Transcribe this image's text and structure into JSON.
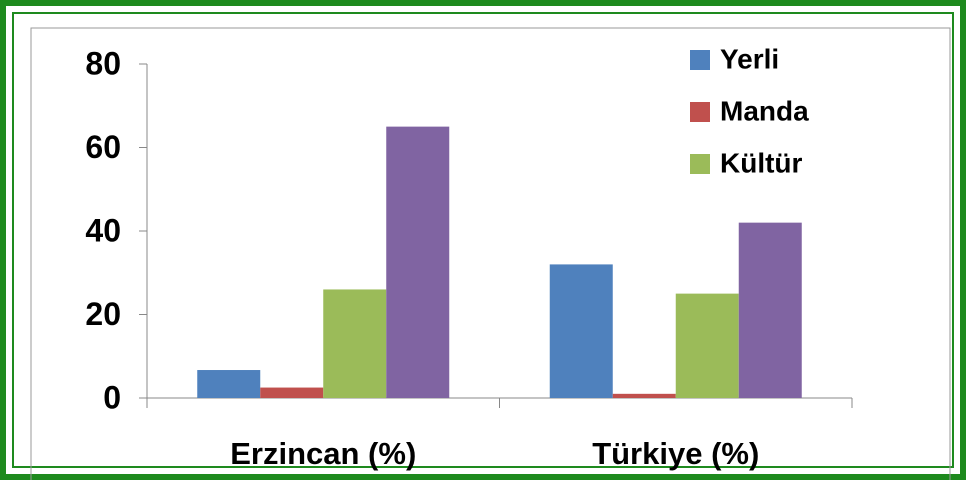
{
  "chart_data": {
    "type": "bar",
    "categories": [
      "Erzincan (%)",
      "Türkiye (%)"
    ],
    "series": [
      {
        "name": "Yerli",
        "color": "#4f81bd",
        "values": [
          6.7,
          32
        ]
      },
      {
        "name": "Manda",
        "color": "#c0504d",
        "values": [
          2.5,
          1
        ]
      },
      {
        "name": "Kültür",
        "color": "#9bbb59",
        "values": [
          26,
          25
        ]
      },
      {
        "color": "#8064a2",
        "values": [
          65,
          42
        ]
      }
    ],
    "ylim": [
      0,
      80
    ],
    "yticks": [
      0,
      20,
      40,
      60,
      80
    ],
    "grid": false,
    "legend": "top-right"
  }
}
